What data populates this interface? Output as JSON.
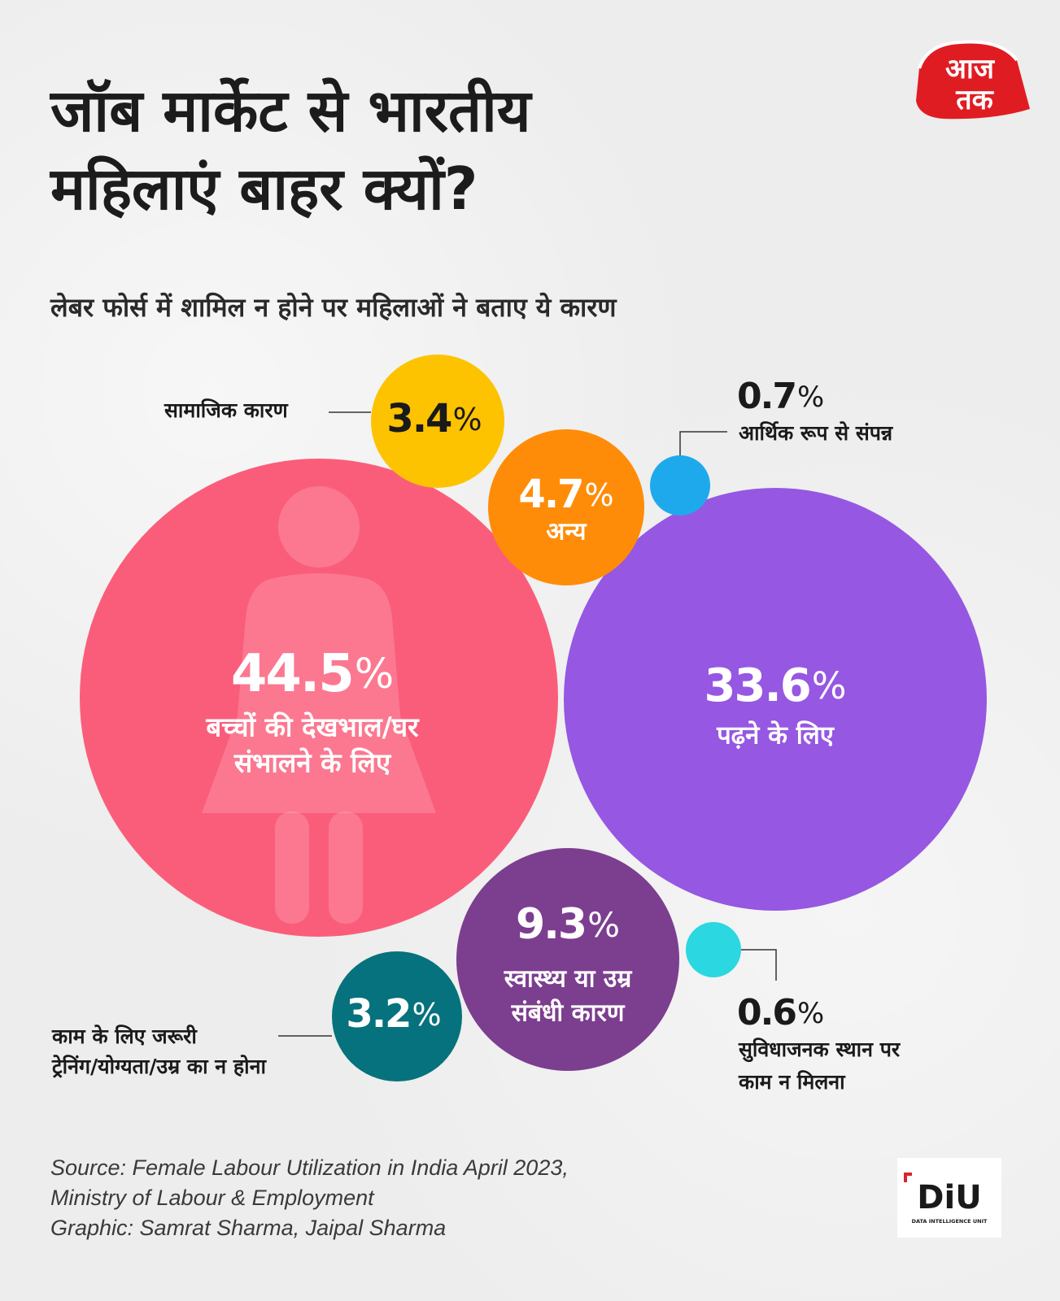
{
  "title": {
    "line1": "जॉब मार्केट से भारतीय",
    "line2": "महिलाएं बाहर क्यों?"
  },
  "subtitle": "लेबर फोर्स में शामिल न होने पर महिलाओं ने बताए ये कारण",
  "brand": {
    "logo_text_top": "आज",
    "logo_text_bottom": "तक",
    "diu_text": "DiU",
    "diu_caption": "DATA INTELLIGENCE UNIT"
  },
  "colors": {
    "pink": "#fa5d7a",
    "purple": "#9657e2",
    "yellow": "#fdc300",
    "orange": "#ff8c08",
    "blue": "#1ea9ec",
    "cyan": "#2bd7e0",
    "teal": "#06727d",
    "plum": "#7c3e8f",
    "logo_red": "#e01c23"
  },
  "chart_data": {
    "type": "bubble",
    "title": "लेबर फोर्स में शामिल न होने पर महिलाओं ने बताए ये कारण",
    "unit": "%",
    "items": [
      {
        "id": "childcare",
        "value": 44.5,
        "value_text": "44.5",
        "label_lines": [
          "बच्चों की देखभाल/घर",
          "संभालने के लिए"
        ],
        "color": "#fa5d7a"
      },
      {
        "id": "study",
        "value": 33.6,
        "value_text": "33.6",
        "label_lines": [
          "पढ़ने के लिए"
        ],
        "color": "#9657e2"
      },
      {
        "id": "health",
        "value": 9.3,
        "value_text": "9.3",
        "label_lines": [
          "स्वास्थ्य या उम्र",
          "संबंधी कारण"
        ],
        "color": "#7c3e8f"
      },
      {
        "id": "other",
        "value": 4.7,
        "value_text": "4.7",
        "label_lines": [
          "अन्य"
        ],
        "color": "#ff8c08"
      },
      {
        "id": "social",
        "value": 3.4,
        "value_text": "3.4",
        "label_lines": [
          "सामाजिक कारण"
        ],
        "color": "#fdc300"
      },
      {
        "id": "training",
        "value": 3.2,
        "value_text": "3.2",
        "label_lines": [
          "काम के लिए जरूरी",
          "ट्रेनिंग/योग्यता/उम्र का न होना"
        ],
        "color": "#06727d"
      },
      {
        "id": "wealthy",
        "value": 0.7,
        "value_text": "0.7",
        "label_lines": [
          "आर्थिक रूप से संपन्न"
        ],
        "color": "#1ea9ec"
      },
      {
        "id": "location",
        "value": 0.6,
        "value_text": "0.6",
        "label_lines": [
          "सुविधाजनक स्थान पर",
          "काम न मिलना"
        ],
        "color": "#2bd7e0"
      }
    ]
  },
  "source": {
    "line1": "Source: Female Labour Utilization in India April 2023,",
    "line2": "Ministry of Labour & Employment",
    "line3": "Graphic: Samrat Sharma, Jaipal Sharma"
  }
}
